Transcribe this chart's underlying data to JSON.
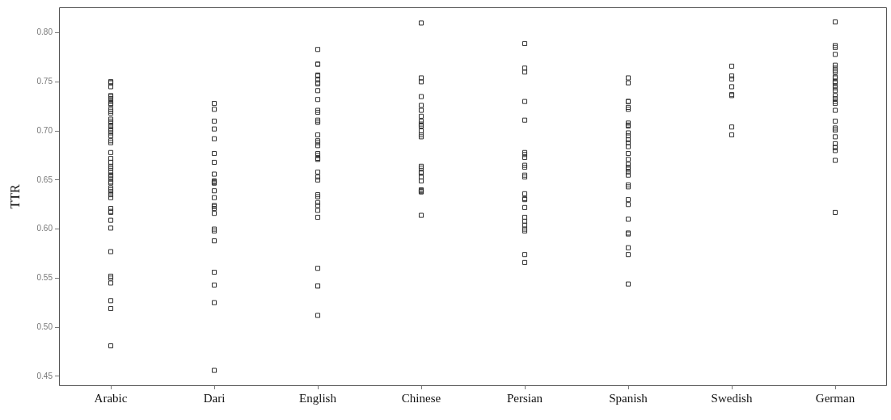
{
  "chart_data": {
    "type": "scatter",
    "ylabel": "TTR",
    "marker": "square",
    "grid": false,
    "legend": false,
    "categories": [
      "Arabic",
      "Dari",
      "English",
      "Chinese",
      "Persian",
      "Spanish",
      "Swedish",
      "German"
    ],
    "ylim": [
      0.44,
      0.826
    ],
    "yticks": [
      {
        "value": 0.45,
        "label": "0.45"
      },
      {
        "value": 0.5,
        "label": "0.50"
      },
      {
        "value": 0.55,
        "label": "0.55"
      },
      {
        "value": 0.6,
        "label": "0.60"
      },
      {
        "value": 0.65,
        "label": "0.65"
      },
      {
        "value": 0.7,
        "label": "0.70"
      },
      {
        "value": 0.75,
        "label": "0.75"
      },
      {
        "value": 0.8,
        "label": "0.80"
      }
    ],
    "series": [
      {
        "color": "#333333",
        "x": [
          "Arabic",
          "Arabic",
          "Arabic",
          "Arabic",
          "Arabic",
          "Arabic",
          "Arabic",
          "Arabic",
          "Arabic",
          "Arabic",
          "Arabic",
          "Arabic",
          "Arabic",
          "Arabic",
          "Arabic",
          "Arabic",
          "Arabic",
          "Arabic",
          "Arabic",
          "Arabic",
          "Arabic",
          "Arabic",
          "Arabic",
          "Arabic",
          "Arabic",
          "Arabic",
          "Arabic",
          "Arabic",
          "Arabic",
          "Arabic",
          "Arabic",
          "Arabic",
          "Arabic",
          "Arabic",
          "Arabic",
          "Arabic",
          "Arabic",
          "Arabic",
          "Arabic",
          "Arabic",
          "Arabic",
          "Arabic",
          "Arabic",
          "Arabic",
          "Arabic",
          "Arabic",
          "Arabic",
          "Arabic",
          "Arabic",
          "Arabic",
          "Arabic",
          "Arabic",
          "Arabic",
          "Arabic",
          "Dari",
          "Dari",
          "Dari",
          "Dari",
          "Dari",
          "Dari",
          "Dari",
          "Dari",
          "Dari",
          "Dari",
          "Dari",
          "Dari",
          "Dari",
          "Dari",
          "Dari",
          "Dari",
          "Dari",
          "Dari",
          "Dari",
          "Dari",
          "Dari",
          "Dari",
          "Dari",
          "Dari",
          "Dari",
          "English",
          "English",
          "English",
          "English",
          "English",
          "English",
          "English",
          "English",
          "English",
          "English",
          "English",
          "English",
          "English",
          "English",
          "English",
          "English",
          "English",
          "English",
          "English",
          "English",
          "English",
          "English",
          "English",
          "English",
          "English",
          "English",
          "English",
          "English",
          "English",
          "English",
          "English",
          "English",
          "English",
          "English",
          "English",
          "English",
          "English",
          "Chinese",
          "Chinese",
          "Chinese",
          "Chinese",
          "Chinese",
          "Chinese",
          "Chinese",
          "Chinese",
          "Chinese",
          "Chinese",
          "Chinese",
          "Chinese",
          "Chinese",
          "Chinese",
          "Chinese",
          "Chinese",
          "Chinese",
          "Chinese",
          "Chinese",
          "Chinese",
          "Chinese",
          "Chinese",
          "Chinese",
          "Chinese",
          "Chinese",
          "Persian",
          "Persian",
          "Persian",
          "Persian",
          "Persian",
          "Persian",
          "Persian",
          "Persian",
          "Persian",
          "Persian",
          "Persian",
          "Persian",
          "Persian",
          "Persian",
          "Persian",
          "Persian",
          "Persian",
          "Persian",
          "Persian",
          "Persian",
          "Persian",
          "Persian",
          "Persian",
          "Spanish",
          "Spanish",
          "Spanish",
          "Spanish",
          "Spanish",
          "Spanish",
          "Spanish",
          "Spanish",
          "Spanish",
          "Spanish",
          "Spanish",
          "Spanish",
          "Spanish",
          "Spanish",
          "Spanish",
          "Spanish",
          "Spanish",
          "Spanish",
          "Spanish",
          "Spanish",
          "Spanish",
          "Spanish",
          "Spanish",
          "Spanish",
          "Spanish",
          "Spanish",
          "Spanish",
          "Spanish",
          "Spanish",
          "Spanish",
          "Spanish",
          "Swedish",
          "Swedish",
          "Swedish",
          "Swedish",
          "Swedish",
          "Swedish",
          "Swedish",
          "Swedish",
          "German",
          "German",
          "German",
          "German",
          "German",
          "German",
          "German",
          "German",
          "German",
          "German",
          "German",
          "German",
          "German",
          "German",
          "German",
          "German",
          "German",
          "German",
          "German",
          "German",
          "German",
          "German",
          "German",
          "German",
          "German",
          "German",
          "German",
          "German",
          "German",
          "German",
          "German",
          "German"
        ],
        "values": [
          0.75,
          0.75,
          0.749,
          0.745,
          0.736,
          0.735,
          0.733,
          0.73,
          0.728,
          0.727,
          0.722,
          0.72,
          0.718,
          0.712,
          0.71,
          0.708,
          0.705,
          0.702,
          0.7,
          0.698,
          0.695,
          0.69,
          0.688,
          0.678,
          0.672,
          0.668,
          0.668,
          0.664,
          0.662,
          0.662,
          0.658,
          0.655,
          0.655,
          0.653,
          0.651,
          0.648,
          0.647,
          0.642,
          0.64,
          0.638,
          0.635,
          0.632,
          0.618,
          0.621,
          0.617,
          0.609,
          0.601,
          0.577,
          0.552,
          0.55,
          0.545,
          0.527,
          0.519,
          0.481,
          0.728,
          0.722,
          0.71,
          0.702,
          0.692,
          0.677,
          0.668,
          0.656,
          0.649,
          0.647,
          0.648,
          0.647,
          0.639,
          0.632,
          0.624,
          0.621,
          0.623,
          0.616,
          0.6,
          0.598,
          0.588,
          0.556,
          0.543,
          0.525,
          0.456,
          0.783,
          0.768,
          0.768,
          0.757,
          0.756,
          0.752,
          0.748,
          0.749,
          0.741,
          0.732,
          0.721,
          0.719,
          0.709,
          0.709,
          0.711,
          0.696,
          0.69,
          0.688,
          0.685,
          0.677,
          0.672,
          0.672,
          0.675,
          0.671,
          0.658,
          0.65,
          0.653,
          0.633,
          0.635,
          0.627,
          0.624,
          0.619,
          0.612,
          0.56,
          0.542,
          0.542,
          0.512,
          0.81,
          0.754,
          0.75,
          0.735,
          0.726,
          0.721,
          0.715,
          0.71,
          0.705,
          0.705,
          0.7,
          0.707,
          0.696,
          0.694,
          0.662,
          0.664,
          0.658,
          0.657,
          0.653,
          0.649,
          0.638,
          0.638,
          0.64,
          0.639,
          0.614,
          0.789,
          0.764,
          0.76,
          0.73,
          0.711,
          0.678,
          0.673,
          0.676,
          0.663,
          0.665,
          0.653,
          0.655,
          0.636,
          0.631,
          0.63,
          0.622,
          0.612,
          0.598,
          0.6,
          0.608,
          0.604,
          0.574,
          0.566,
          0.754,
          0.749,
          0.73,
          0.73,
          0.722,
          0.724,
          0.708,
          0.706,
          0.705,
          0.698,
          0.695,
          0.691,
          0.688,
          0.684,
          0.677,
          0.671,
          0.666,
          0.663,
          0.661,
          0.658,
          0.655,
          0.645,
          0.643,
          0.63,
          0.625,
          0.61,
          0.595,
          0.596,
          0.581,
          0.574,
          0.544,
          0.766,
          0.756,
          0.753,
          0.745,
          0.737,
          0.736,
          0.704,
          0.696,
          0.811,
          0.785,
          0.787,
          0.778,
          0.767,
          0.762,
          0.764,
          0.76,
          0.75,
          0.75,
          0.754,
          0.755,
          0.749,
          0.744,
          0.746,
          0.741,
          0.736,
          0.728,
          0.73,
          0.733,
          0.721,
          0.71,
          0.701,
          0.701,
          0.703,
          0.694,
          0.687,
          0.68,
          0.67,
          0.683,
          0.683,
          0.617
        ]
      }
    ]
  }
}
